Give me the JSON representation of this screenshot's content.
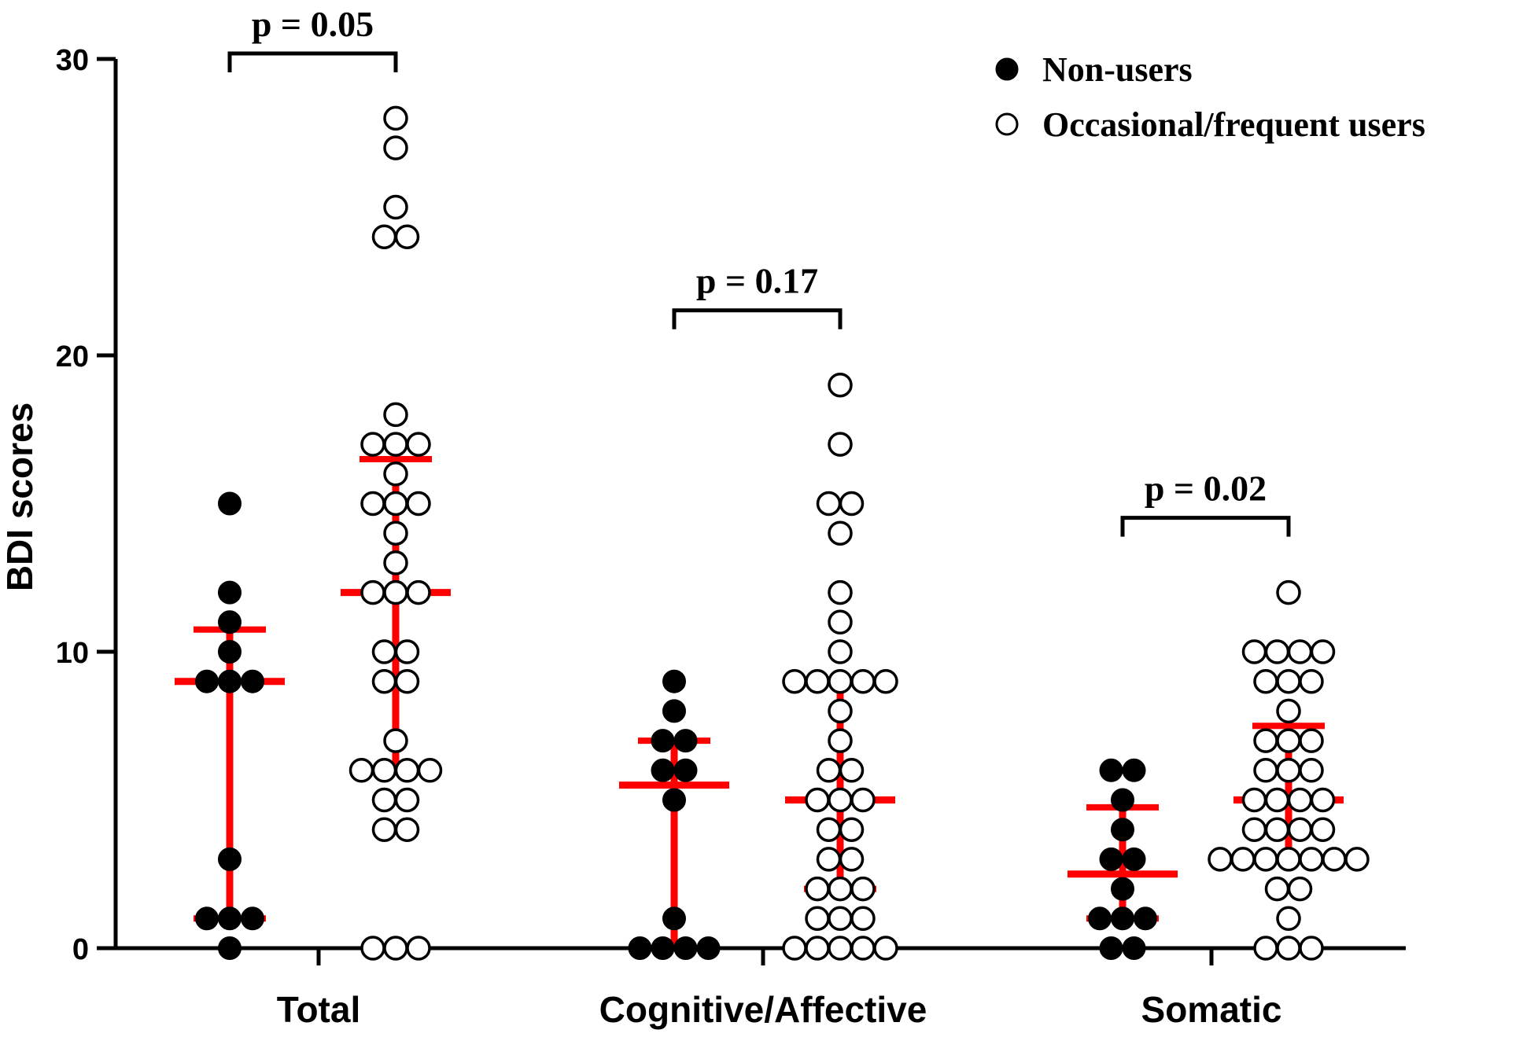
{
  "chart_data": {
    "type": "scatter",
    "ylabel": "BDI scores",
    "xlabel": "",
    "ylim": [
      0,
      30
    ],
    "yticks": [
      0,
      10,
      20,
      30
    ],
    "groups": [
      "Total",
      "Cognitive/Affective",
      "Somatic"
    ],
    "legend": {
      "placement": "top-right",
      "entries": [
        "Non-users",
        "Occasional/frequent users"
      ]
    },
    "colors": {
      "points": "#000000",
      "summary": "#ff0000",
      "axes": "#000000"
    },
    "significance": [
      {
        "group": "Total",
        "label": "p = 0.05"
      },
      {
        "group": "Cognitive/Affective",
        "label": "p = 0.17"
      },
      {
        "group": "Somatic",
        "label": "p = 0.02"
      }
    ],
    "series": [
      {
        "name": "Non-users",
        "marker": "filled",
        "groups": [
          {
            "group": "Total",
            "values": [
              15,
              12,
              11,
              10,
              9,
              9,
              9,
              3,
              1,
              1,
              1,
              0
            ],
            "median": 9,
            "iqr": [
              1,
              10.75
            ]
          },
          {
            "group": "Cognitive/Affective",
            "values": [
              9,
              8,
              7,
              7,
              6,
              6,
              5,
              1,
              0,
              0,
              0,
              0
            ],
            "median": 5.5,
            "iqr": [
              0,
              7
            ]
          },
          {
            "group": "Somatic",
            "values": [
              6,
              6,
              5,
              4,
              3,
              3,
              2,
              1,
              1,
              1,
              0,
              0
            ],
            "median": 2.5,
            "iqr": [
              1,
              4.75
            ]
          }
        ]
      },
      {
        "name": "Occasional/frequent users",
        "marker": "open",
        "groups": [
          {
            "group": "Total",
            "values": [
              28,
              27,
              25,
              24,
              24,
              18,
              17,
              17,
              17,
              16,
              15,
              15,
              15,
              14,
              13,
              12,
              12,
              12,
              10,
              10,
              9,
              9,
              7,
              6,
              6,
              6,
              6,
              5,
              5,
              4,
              4,
              0,
              0,
              0
            ],
            "median": 12,
            "iqr": [
              6,
              16.5
            ]
          },
          {
            "group": "Cognitive/Affective",
            "values": [
              19,
              17,
              15,
              15,
              14,
              12,
              11,
              10,
              9,
              9,
              9,
              9,
              9,
              8,
              7,
              6,
              6,
              5,
              5,
              5,
              4,
              4,
              3,
              3,
              2,
              2,
              2,
              1,
              1,
              1,
              0,
              0,
              0,
              0,
              0
            ],
            "median": 5,
            "iqr": [
              2,
              9
            ]
          },
          {
            "group": "Somatic",
            "values": [
              12,
              10,
              10,
              10,
              10,
              9,
              9,
              9,
              8,
              7,
              7,
              7,
              6,
              6,
              6,
              5,
              5,
              5,
              5,
              4,
              4,
              4,
              4,
              3,
              3,
              3,
              3,
              3,
              3,
              3,
              2,
              2,
              1,
              0,
              0,
              0
            ],
            "median": 5,
            "iqr": [
              3,
              7.5
            ]
          }
        ]
      }
    ]
  }
}
